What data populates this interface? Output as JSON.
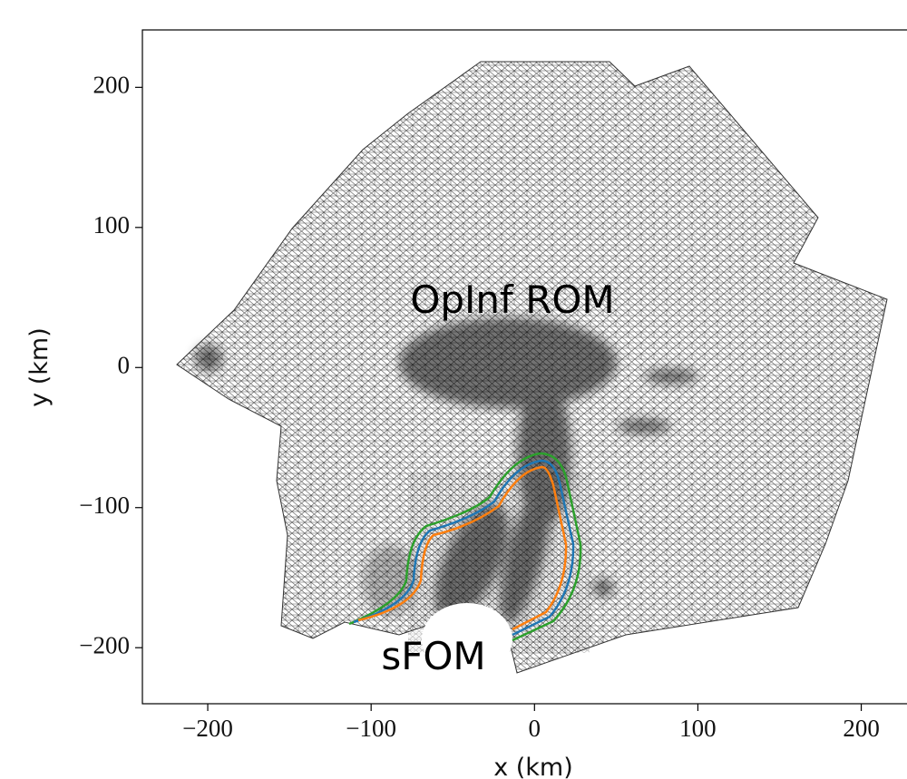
{
  "chart_data": {
    "type": "mesh",
    "x_label": "x (km)",
    "y_label": "y (km)",
    "annotations": [
      "OpInf ROM",
      "sFOM"
    ],
    "xlim": [
      -240,
      228
    ],
    "ylim": [
      -240,
      241
    ],
    "xticks": [
      {
        "value": -200,
        "label": "−200"
      },
      {
        "value": -100,
        "label": "−100"
      },
      0,
      100,
      200
    ],
    "yticks": [
      {
        "value": -200,
        "label": "−200"
      },
      {
        "value": -100,
        "label": "−100"
      },
      0,
      100,
      200
    ]
  }
}
